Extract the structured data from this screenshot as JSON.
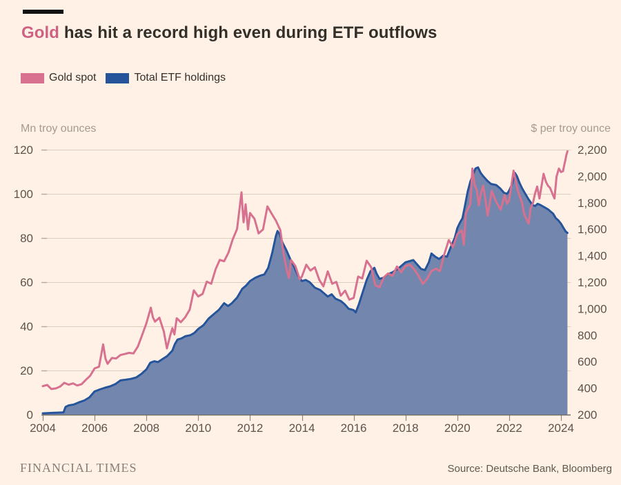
{
  "header": {
    "title_accent": "Gold",
    "title_rest": " has hit a record high even during ETF outflows"
  },
  "legend": [
    {
      "label": "Gold spot",
      "color": "#d7718f"
    },
    {
      "label": "Total ETF holdings",
      "color": "#26549b"
    }
  ],
  "footer": {
    "brand": "FINANCIAL TIMES",
    "source": "Source: Deutsche Bank, Bloomberg"
  },
  "colors": {
    "background": "#fff1e5",
    "title_accent": "#cf6183",
    "gold_line": "#d7718f",
    "etf_line": "#26549b",
    "etf_fill": "#7387ae",
    "gridline": "#dccdbd",
    "grid_stub": "#b3a89a",
    "baseline": "#6f6960",
    "tick_mark": "#8d857c",
    "tick_text": "#5b544b"
  },
  "chart_data": {
    "type": "line",
    "title": "Gold has hit a record high even during ETF outflows",
    "grid": true,
    "legend_position": "top-left",
    "x_axis": {
      "min": 2004,
      "max": 2024.25,
      "ticks": [
        2004,
        2006,
        2008,
        2010,
        2012,
        2014,
        2016,
        2018,
        2020,
        2022,
        2024
      ]
    },
    "left_axis": {
      "label": "Mn troy ounces",
      "min": 0,
      "max": 120,
      "ticks": [
        0,
        20,
        40,
        60,
        80,
        100,
        120
      ]
    },
    "right_axis": {
      "label": "$ per troy ounce",
      "min": 200,
      "max": 2200,
      "ticks": [
        200,
        400,
        600,
        800,
        1000,
        1200,
        1400,
        1600,
        1800,
        2000,
        2200
      ]
    },
    "series": [
      {
        "name": "Total ETF holdings",
        "axis": "left",
        "type": "area",
        "line_color": "#26549b",
        "fill_color": "#7387ae",
        "points": [
          [
            2004.0,
            0.6
          ],
          [
            2004.4,
            0.8
          ],
          [
            2004.8,
            1.0
          ],
          [
            2004.88,
            3.5
          ],
          [
            2005.0,
            4.2
          ],
          [
            2005.2,
            4.6
          ],
          [
            2005.4,
            5.6
          ],
          [
            2005.6,
            6.4
          ],
          [
            2005.8,
            7.8
          ],
          [
            2006.0,
            10.5
          ],
          [
            2006.2,
            11.4
          ],
          [
            2006.4,
            12.2
          ],
          [
            2006.6,
            12.8
          ],
          [
            2006.8,
            13.8
          ],
          [
            2007.0,
            15.5
          ],
          [
            2007.2,
            15.8
          ],
          [
            2007.4,
            16.2
          ],
          [
            2007.6,
            16.8
          ],
          [
            2007.8,
            18.4
          ],
          [
            2008.0,
            20.5
          ],
          [
            2008.15,
            23.5
          ],
          [
            2008.3,
            24.2
          ],
          [
            2008.45,
            23.8
          ],
          [
            2008.6,
            25.0
          ],
          [
            2008.8,
            26.5
          ],
          [
            2009.0,
            29.0
          ],
          [
            2009.1,
            32.0
          ],
          [
            2009.2,
            34.0
          ],
          [
            2009.35,
            34.5
          ],
          [
            2009.5,
            35.5
          ],
          [
            2009.7,
            36.0
          ],
          [
            2009.85,
            37.0
          ],
          [
            2010.0,
            38.8
          ],
          [
            2010.2,
            40.5
          ],
          [
            2010.4,
            43.5
          ],
          [
            2010.6,
            45.5
          ],
          [
            2010.8,
            47.5
          ],
          [
            2011.0,
            50.5
          ],
          [
            2011.15,
            49.2
          ],
          [
            2011.3,
            50.5
          ],
          [
            2011.5,
            53.0
          ],
          [
            2011.7,
            57.0
          ],
          [
            2011.85,
            58.5
          ],
          [
            2012.0,
            60.5
          ],
          [
            2012.2,
            62.0
          ],
          [
            2012.4,
            63.0
          ],
          [
            2012.55,
            63.5
          ],
          [
            2012.7,
            66.5
          ],
          [
            2012.85,
            73.0
          ],
          [
            2013.0,
            81.0
          ],
          [
            2013.06,
            83.2
          ],
          [
            2013.15,
            81.5
          ],
          [
            2013.25,
            78.0
          ],
          [
            2013.4,
            74.5
          ],
          [
            2013.55,
            70.5
          ],
          [
            2013.7,
            67.0
          ],
          [
            2013.85,
            63.0
          ],
          [
            2014.0,
            60.5
          ],
          [
            2014.15,
            61.0
          ],
          [
            2014.3,
            60.0
          ],
          [
            2014.5,
            57.5
          ],
          [
            2014.7,
            56.5
          ],
          [
            2014.85,
            55.0
          ],
          [
            2015.0,
            53.5
          ],
          [
            2015.15,
            54.5
          ],
          [
            2015.3,
            52.5
          ],
          [
            2015.5,
            51.5
          ],
          [
            2015.65,
            50.0
          ],
          [
            2015.8,
            48.0
          ],
          [
            2016.0,
            47.3
          ],
          [
            2016.08,
            46.3
          ],
          [
            2016.2,
            50.0
          ],
          [
            2016.35,
            55.5
          ],
          [
            2016.5,
            61.0
          ],
          [
            2016.65,
            65.0
          ],
          [
            2016.8,
            66.5
          ],
          [
            2016.88,
            64.0
          ],
          [
            2017.0,
            61.5
          ],
          [
            2017.15,
            62.0
          ],
          [
            2017.3,
            63.5
          ],
          [
            2017.5,
            64.5
          ],
          [
            2017.7,
            66.0
          ],
          [
            2017.85,
            67.5
          ],
          [
            2018.0,
            69.0
          ],
          [
            2018.15,
            69.5
          ],
          [
            2018.3,
            70.0
          ],
          [
            2018.45,
            68.0
          ],
          [
            2018.6,
            66.0
          ],
          [
            2018.75,
            65.5
          ],
          [
            2018.9,
            69.0
          ],
          [
            2019.0,
            73.0
          ],
          [
            2019.15,
            71.5
          ],
          [
            2019.3,
            70.5
          ],
          [
            2019.45,
            72.0
          ],
          [
            2019.6,
            71.5
          ],
          [
            2019.75,
            76.0
          ],
          [
            2019.9,
            80.0
          ],
          [
            2020.0,
            84.5
          ],
          [
            2020.1,
            87.0
          ],
          [
            2020.2,
            89.0
          ],
          [
            2020.3,
            95.0
          ],
          [
            2020.4,
            101.0
          ],
          [
            2020.5,
            105.5
          ],
          [
            2020.6,
            108.5
          ],
          [
            2020.7,
            111.5
          ],
          [
            2020.8,
            112.0
          ],
          [
            2020.9,
            109.5
          ],
          [
            2021.0,
            108.0
          ],
          [
            2021.15,
            106.0
          ],
          [
            2021.3,
            104.5
          ],
          [
            2021.5,
            104.0
          ],
          [
            2021.65,
            102.5
          ],
          [
            2021.8,
            100.5
          ],
          [
            2021.92,
            100.0
          ],
          [
            2022.0,
            101.5
          ],
          [
            2022.1,
            104.0
          ],
          [
            2022.22,
            109.5
          ],
          [
            2022.3,
            108.0
          ],
          [
            2022.4,
            105.0
          ],
          [
            2022.5,
            102.5
          ],
          [
            2022.6,
            100.5
          ],
          [
            2022.75,
            97.5
          ],
          [
            2022.9,
            95.0
          ],
          [
            2023.0,
            94.5
          ],
          [
            2023.1,
            95.5
          ],
          [
            2023.2,
            95.0
          ],
          [
            2023.35,
            94.0
          ],
          [
            2023.5,
            93.0
          ],
          [
            2023.6,
            92.0
          ],
          [
            2023.7,
            91.0
          ],
          [
            2023.8,
            89.0
          ],
          [
            2023.9,
            88.0
          ],
          [
            2024.0,
            86.5
          ],
          [
            2024.1,
            84.5
          ],
          [
            2024.18,
            83.0
          ],
          [
            2024.25,
            82.3
          ]
        ]
      },
      {
        "name": "Gold spot",
        "axis": "right",
        "type": "line",
        "line_color": "#d7718f",
        "points": [
          [
            2004.0,
            415
          ],
          [
            2004.17,
            424
          ],
          [
            2004.33,
            393
          ],
          [
            2004.5,
            398
          ],
          [
            2004.67,
            412
          ],
          [
            2004.83,
            440
          ],
          [
            2005.0,
            426
          ],
          [
            2005.17,
            436
          ],
          [
            2005.33,
            420
          ],
          [
            2005.5,
            430
          ],
          [
            2005.67,
            464
          ],
          [
            2005.83,
            494
          ],
          [
            2006.0,
            549
          ],
          [
            2006.17,
            562
          ],
          [
            2006.33,
            730
          ],
          [
            2006.42,
            622
          ],
          [
            2006.5,
            584
          ],
          [
            2006.67,
            628
          ],
          [
            2006.83,
            624
          ],
          [
            2007.0,
            650
          ],
          [
            2007.17,
            658
          ],
          [
            2007.33,
            666
          ],
          [
            2007.5,
            662
          ],
          [
            2007.67,
            714
          ],
          [
            2007.83,
            798
          ],
          [
            2008.0,
            890
          ],
          [
            2008.17,
            1008
          ],
          [
            2008.25,
            935
          ],
          [
            2008.33,
            902
          ],
          [
            2008.5,
            932
          ],
          [
            2008.67,
            828
          ],
          [
            2008.79,
            700
          ],
          [
            2008.92,
            798
          ],
          [
            2009.0,
            852
          ],
          [
            2009.08,
            805
          ],
          [
            2009.17,
            928
          ],
          [
            2009.33,
            898
          ],
          [
            2009.5,
            936
          ],
          [
            2009.67,
            992
          ],
          [
            2009.83,
            1138
          ],
          [
            2010.0,
            1092
          ],
          [
            2010.17,
            1112
          ],
          [
            2010.33,
            1204
          ],
          [
            2010.5,
            1188
          ],
          [
            2010.67,
            1298
          ],
          [
            2010.83,
            1368
          ],
          [
            2011.0,
            1358
          ],
          [
            2011.17,
            1424
          ],
          [
            2011.33,
            1522
          ],
          [
            2011.5,
            1602
          ],
          [
            2011.67,
            1878
          ],
          [
            2011.71,
            1758
          ],
          [
            2011.75,
            1652
          ],
          [
            2011.83,
            1788
          ],
          [
            2011.92,
            1598
          ],
          [
            2012.0,
            1722
          ],
          [
            2012.17,
            1678
          ],
          [
            2012.33,
            1568
          ],
          [
            2012.5,
            1598
          ],
          [
            2012.67,
            1772
          ],
          [
            2012.83,
            1718
          ],
          [
            2013.0,
            1664
          ],
          [
            2013.17,
            1592
          ],
          [
            2013.29,
            1420
          ],
          [
            2013.42,
            1288
          ],
          [
            2013.5,
            1232
          ],
          [
            2013.58,
            1368
          ],
          [
            2013.75,
            1322
          ],
          [
            2013.92,
            1222
          ],
          [
            2014.0,
            1242
          ],
          [
            2014.17,
            1332
          ],
          [
            2014.33,
            1288
          ],
          [
            2014.5,
            1312
          ],
          [
            2014.67,
            1218
          ],
          [
            2014.83,
            1168
          ],
          [
            2015.0,
            1282
          ],
          [
            2015.17,
            1188
          ],
          [
            2015.33,
            1202
          ],
          [
            2015.5,
            1098
          ],
          [
            2015.67,
            1136
          ],
          [
            2015.83,
            1068
          ],
          [
            2016.0,
            1082
          ],
          [
            2016.17,
            1242
          ],
          [
            2016.33,
            1228
          ],
          [
            2016.5,
            1362
          ],
          [
            2016.67,
            1314
          ],
          [
            2016.83,
            1178
          ],
          [
            2017.0,
            1162
          ],
          [
            2017.17,
            1238
          ],
          [
            2017.33,
            1266
          ],
          [
            2017.5,
            1248
          ],
          [
            2017.67,
            1318
          ],
          [
            2017.83,
            1274
          ],
          [
            2018.0,
            1322
          ],
          [
            2018.17,
            1332
          ],
          [
            2018.33,
            1298
          ],
          [
            2018.5,
            1248
          ],
          [
            2018.67,
            1188
          ],
          [
            2018.83,
            1224
          ],
          [
            2019.0,
            1284
          ],
          [
            2019.17,
            1302
          ],
          [
            2019.33,
            1284
          ],
          [
            2019.5,
            1412
          ],
          [
            2019.67,
            1518
          ],
          [
            2019.83,
            1464
          ],
          [
            2020.0,
            1562
          ],
          [
            2020.17,
            1592
          ],
          [
            2020.25,
            1482
          ],
          [
            2020.33,
            1722
          ],
          [
            2020.5,
            1788
          ],
          [
            2020.58,
            2058
          ],
          [
            2020.67,
            1932
          ],
          [
            2020.75,
            1898
          ],
          [
            2020.83,
            1782
          ],
          [
            2020.92,
            1878
          ],
          [
            2021.0,
            1928
          ],
          [
            2021.08,
            1832
          ],
          [
            2021.17,
            1702
          ],
          [
            2021.33,
            1888
          ],
          [
            2021.5,
            1806
          ],
          [
            2021.67,
            1748
          ],
          [
            2021.83,
            1858
          ],
          [
            2021.92,
            1792
          ],
          [
            2022.0,
            1818
          ],
          [
            2022.17,
            2042
          ],
          [
            2022.33,
            1892
          ],
          [
            2022.5,
            1798
          ],
          [
            2022.58,
            1712
          ],
          [
            2022.75,
            1642
          ],
          [
            2022.83,
            1758
          ],
          [
            2022.92,
            1798
          ],
          [
            2023.0,
            1868
          ],
          [
            2023.08,
            1922
          ],
          [
            2023.17,
            1832
          ],
          [
            2023.33,
            2018
          ],
          [
            2023.42,
            1958
          ],
          [
            2023.5,
            1928
          ],
          [
            2023.58,
            1912
          ],
          [
            2023.67,
            1868
          ],
          [
            2023.75,
            1832
          ],
          [
            2023.83,
            1998
          ],
          [
            2023.92,
            2058
          ],
          [
            2024.0,
            2032
          ],
          [
            2024.08,
            2038
          ],
          [
            2024.13,
            2088
          ],
          [
            2024.17,
            2122
          ],
          [
            2024.21,
            2162
          ],
          [
            2024.25,
            2188
          ]
        ]
      }
    ]
  }
}
